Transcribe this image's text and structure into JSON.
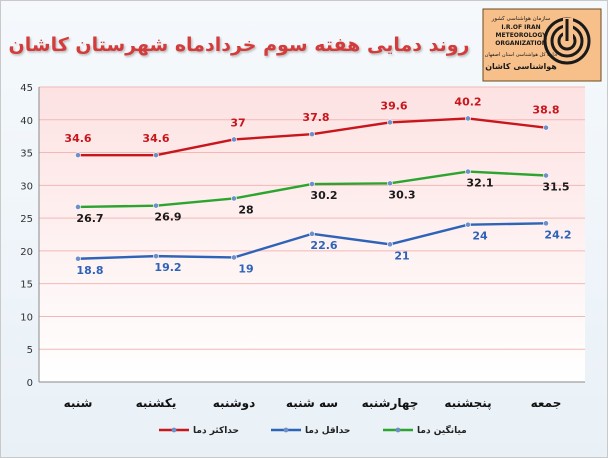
{
  "colors": {
    "max": "#c8161d",
    "min": "#2e63b8",
    "avg": "#2ca52f",
    "title": "#d43b3b",
    "plot_bg_top": "#fde2e2",
    "plot_bg_bottom": "#ffffff",
    "grid": "#f2b8b8",
    "logo_bg": "#f7c08a"
  },
  "logo": {
    "icon": "meteorological-spiral-logo-icon",
    "line1": "سازمان هواشناسی کشور",
    "line2": "I.R.OF IRAN",
    "line3": "METEOROLOGY",
    "line4": "ORGANIZATION",
    "line5": "اداره کل هواشناسی استان اصفهان",
    "line6": "هواشناسی کاشان"
  },
  "chart_data": {
    "type": "line",
    "title": "روند دمایی هفته سوم خردادماه شهرستان کاشان",
    "categories": [
      "شنبه",
      "یکشنبه",
      "دوشنبه",
      "سه شنبه",
      "چهارشنبه",
      "پنجشنبه",
      "جمعه"
    ],
    "series": [
      {
        "name": "حداکثر دما",
        "key": "max",
        "values": [
          34.6,
          34.6,
          37,
          37.8,
          39.6,
          40.2,
          38.8
        ]
      },
      {
        "name": "حداقل دما",
        "key": "min",
        "values": [
          18.8,
          19.2,
          19,
          22.6,
          21,
          24,
          24.2
        ]
      },
      {
        "name": "میانگین دما",
        "key": "avg",
        "values": [
          26.7,
          26.9,
          28,
          30.2,
          30.3,
          32.1,
          31.5
        ]
      }
    ],
    "ylim": [
      0,
      45
    ],
    "yticks": [
      0,
      5,
      10,
      15,
      20,
      25,
      30,
      35,
      40,
      45
    ],
    "grid": true,
    "legend": "bottom"
  }
}
